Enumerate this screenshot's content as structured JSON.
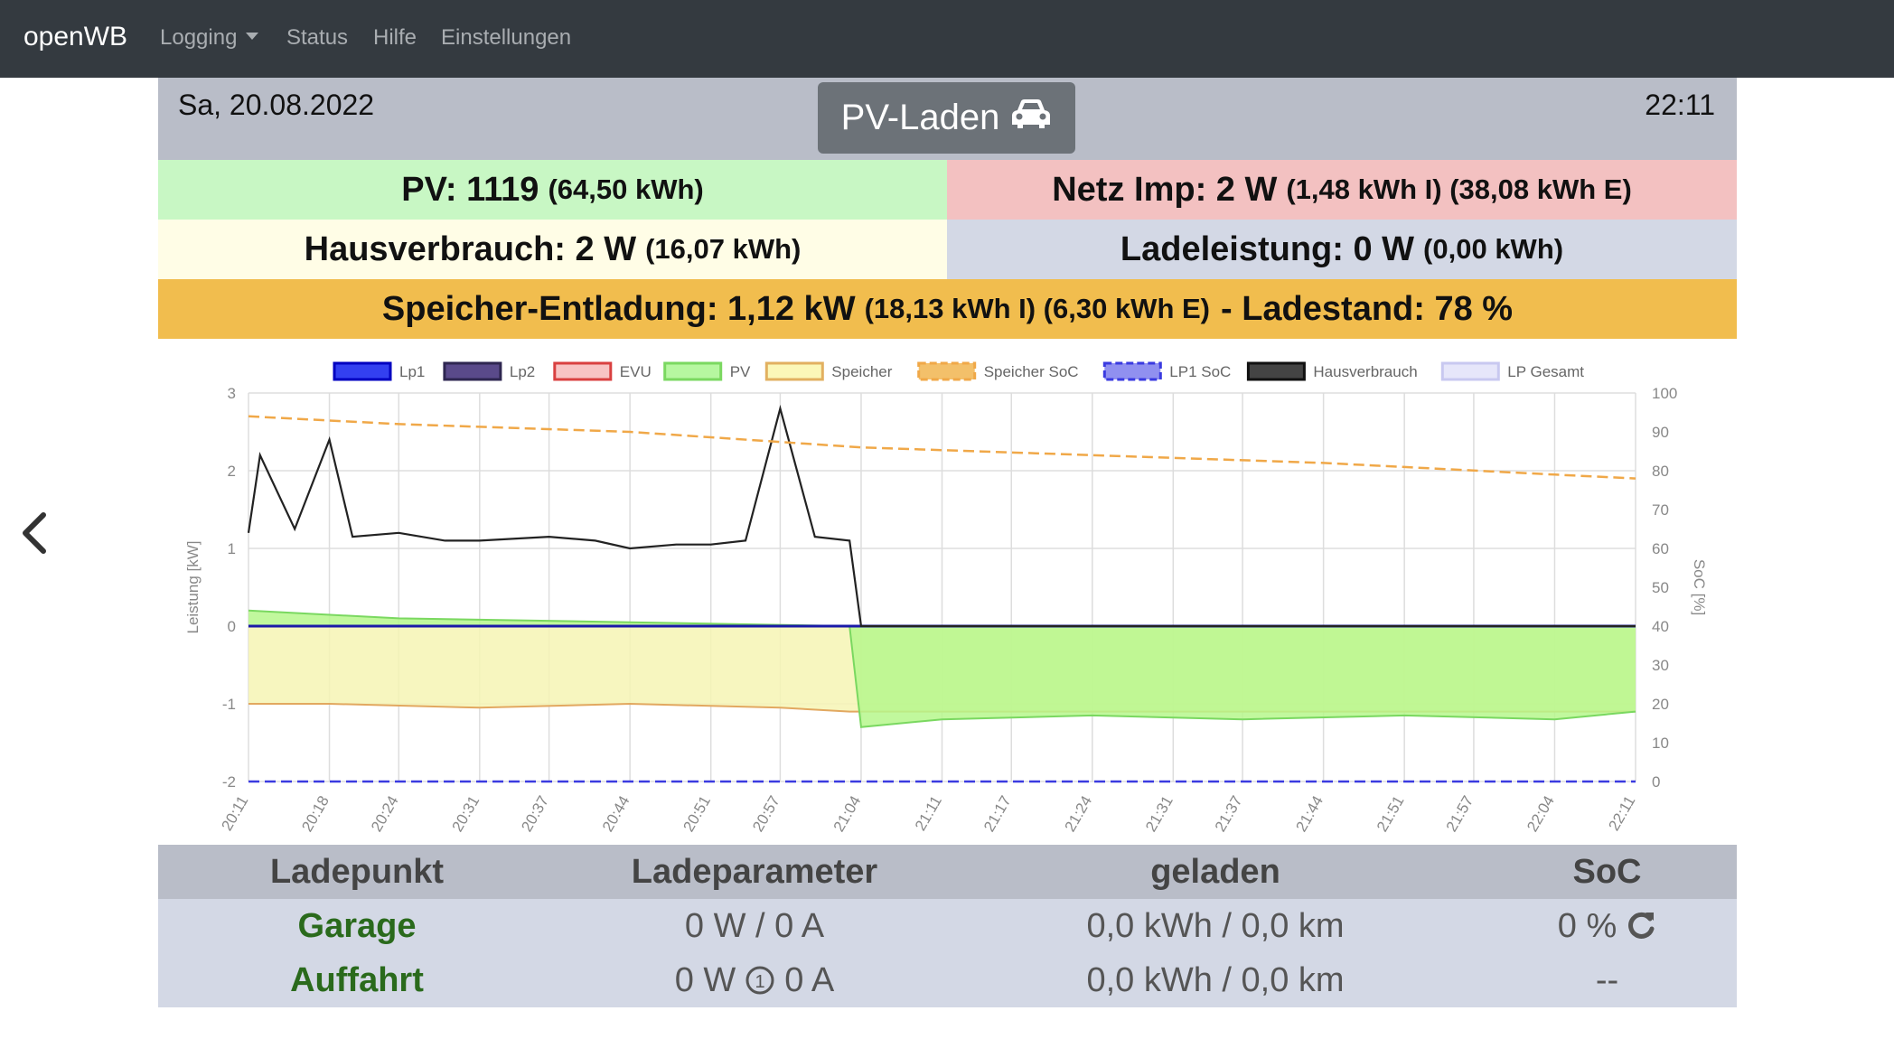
{
  "nav": {
    "brand": "openWB",
    "items": [
      "Logging",
      "Status",
      "Hilfe",
      "Einstellungen"
    ]
  },
  "header": {
    "date": "Sa, 20.08.2022",
    "mode": "PV-Laden",
    "time": "22:11"
  },
  "stats": {
    "pv_main": "PV: 1119",
    "pv_sub": "(64,50 kWh)",
    "netz_main": "Netz Imp: 2 W",
    "netz_sub": "(1,48 kWh I) (38,08 kWh E)",
    "haus_main": "Hausverbrauch: 2 W",
    "haus_sub": "(16,07 kWh)",
    "lade_main": "Ladeleistung: 0 W",
    "lade_sub": "(0,00 kWh)",
    "speicher_main": "Speicher-Entladung: 1,12 kW",
    "speicher_sub": "(18,13 kWh I) (6,30 kWh E)",
    "speicher_end": "- Ladestand: 78 %"
  },
  "colors": {
    "pv_bg": "#c8f7c4",
    "netz_bg": "#f3c1c1",
    "haus_bg": "#fffde6",
    "lade_bg": "#d3d8e5",
    "speicher_bg": "#f1bd4e"
  },
  "chart_data": {
    "type": "line",
    "ylabel": "Leistung [kW]",
    "y2label": "SoC [%]",
    "ylim": [
      -2,
      3
    ],
    "y2lim": [
      0,
      100
    ],
    "yticks": [
      "3",
      "2",
      "1",
      "0",
      "-1",
      "-2"
    ],
    "y2ticks": [
      "100",
      "90",
      "80",
      "70",
      "60",
      "50",
      "40",
      "30",
      "20",
      "10",
      "0"
    ],
    "categories": [
      "20:11",
      "20:18",
      "20:24",
      "20:31",
      "20:37",
      "20:44",
      "20:51",
      "20:57",
      "21:04",
      "21:11",
      "21:17",
      "21:24",
      "21:31",
      "21:37",
      "21:44",
      "21:51",
      "21:57",
      "22:04",
      "22:11"
    ],
    "legend_position": "top",
    "grid": true,
    "legend": [
      {
        "name": "Lp1",
        "color": "#3340f0",
        "border": "#0000c0",
        "dashed": false
      },
      {
        "name": "Lp2",
        "color": "#5a4a8a",
        "border": "#2e2650",
        "dashed": false
      },
      {
        "name": "EVU",
        "color": "#f8c4c4",
        "border": "#d94040",
        "dashed": false
      },
      {
        "name": "PV",
        "color": "#b6f7a0",
        "border": "#7ad860",
        "dashed": false
      },
      {
        "name": "Speicher",
        "color": "#fbf7b8",
        "border": "#e2b060",
        "dashed": false
      },
      {
        "name": "Speicher SoC",
        "color": "#f3c06a",
        "border": "#f0a848",
        "dashed": true
      },
      {
        "name": "LP1 SoC",
        "color": "#9090f0",
        "border": "#3a3ae0",
        "dashed": true
      },
      {
        "name": "Hausverbrauch",
        "color": "#444444",
        "border": "#111111",
        "dashed": false
      },
      {
        "name": "LP Gesamt",
        "color": "#e6e6fa",
        "border": "#c8c8f0",
        "dashed": false
      }
    ],
    "series": [
      {
        "name": "Hausverbrauch",
        "x": [
          "20:11",
          "20:12",
          "20:15",
          "20:18",
          "20:20",
          "20:24",
          "20:28",
          "20:31",
          "20:37",
          "20:41",
          "20:44",
          "20:48",
          "20:51",
          "20:54",
          "20:57",
          "21:00",
          "21:03",
          "21:04",
          "21:11",
          "21:24",
          "21:37",
          "21:51",
          "22:04",
          "22:11"
        ],
        "values": [
          1.2,
          2.2,
          1.25,
          2.4,
          1.15,
          1.2,
          1.1,
          1.1,
          1.15,
          1.1,
          1.0,
          1.05,
          1.05,
          1.1,
          2.8,
          1.15,
          1.1,
          0.0,
          0.0,
          0.0,
          0.0,
          0.0,
          0.0,
          0.0
        ]
      },
      {
        "name": "Speicher",
        "x": [
          "20:11",
          "20:18",
          "20:31",
          "20:44",
          "20:57",
          "21:03",
          "21:04",
          "22:11"
        ],
        "values": [
          -1.0,
          -1.0,
          -1.05,
          -1.0,
          -1.05,
          -1.1,
          -1.1,
          -1.1
        ]
      },
      {
        "name": "PV",
        "x": [
          "20:11",
          "20:24",
          "20:44",
          "21:03",
          "21:04",
          "21:11",
          "21:24",
          "21:37",
          "21:51",
          "22:04",
          "22:11"
        ],
        "values": [
          0.2,
          0.1,
          0.05,
          0.0,
          -1.3,
          -1.2,
          -1.15,
          -1.2,
          -1.15,
          -1.2,
          -1.1
        ]
      },
      {
        "name": "Speicher SoC",
        "x": [
          "20:11",
          "20:24",
          "20:44",
          "21:04",
          "21:24",
          "21:44",
          "22:04",
          "22:11"
        ],
        "values": [
          94,
          92,
          90,
          86,
          84,
          82,
          79,
          78
        ]
      },
      {
        "name": "LP1 SoC",
        "x": [
          "20:11",
          "22:11"
        ],
        "values": [
          0,
          0
        ]
      }
    ]
  },
  "table": {
    "headers": [
      "Ladepunkt",
      "Ladeparameter",
      "geladen",
      "SoC"
    ],
    "rows": [
      {
        "name": "Garage",
        "param": "0 W / 0 A",
        "geladen": "0,0 kWh / 0,0 km",
        "soc": "0 %"
      },
      {
        "name": "Auffahrt",
        "param_left": "0 W",
        "param_right": "0 A",
        "geladen": "0,0 kWh / 0,0 km",
        "soc": "--"
      }
    ]
  }
}
